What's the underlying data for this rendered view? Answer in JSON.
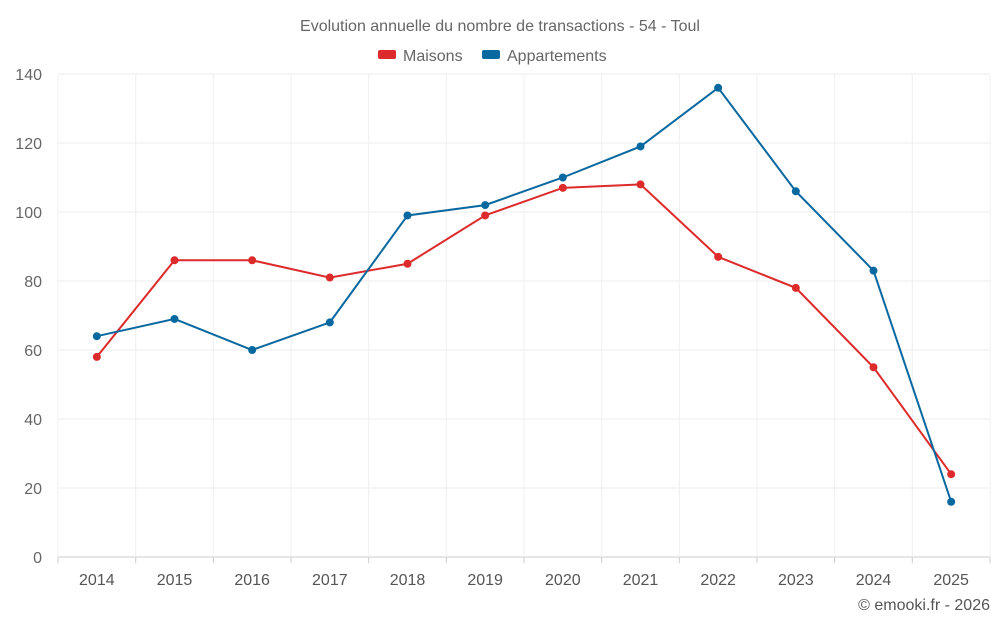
{
  "chart_data": {
    "type": "line",
    "title": "Evolution annuelle du nombre de transactions - 54 - Toul",
    "categories": [
      "2014",
      "2015",
      "2016",
      "2017",
      "2018",
      "2019",
      "2020",
      "2021",
      "2022",
      "2023",
      "2024",
      "2025"
    ],
    "series": [
      {
        "name": "Maisons",
        "color": "#dd2a2a",
        "values": [
          58,
          86,
          86,
          81,
          85,
          99,
          107,
          108,
          87,
          78,
          55,
          24
        ]
      },
      {
        "name": "Appartements",
        "color": "#0868a0",
        "values": [
          64,
          69,
          60,
          68,
          99,
          102,
          110,
          119,
          136,
          106,
          83,
          16
        ]
      }
    ],
    "yticks": [
      0,
      20,
      40,
      60,
      80,
      100,
      120,
      140
    ],
    "ylim": [
      0,
      140
    ],
    "grid": true,
    "legend_position": "top-center",
    "xlabel": "",
    "ylabel": ""
  },
  "footer": {
    "credit": "© emooki.fr - 2026"
  }
}
